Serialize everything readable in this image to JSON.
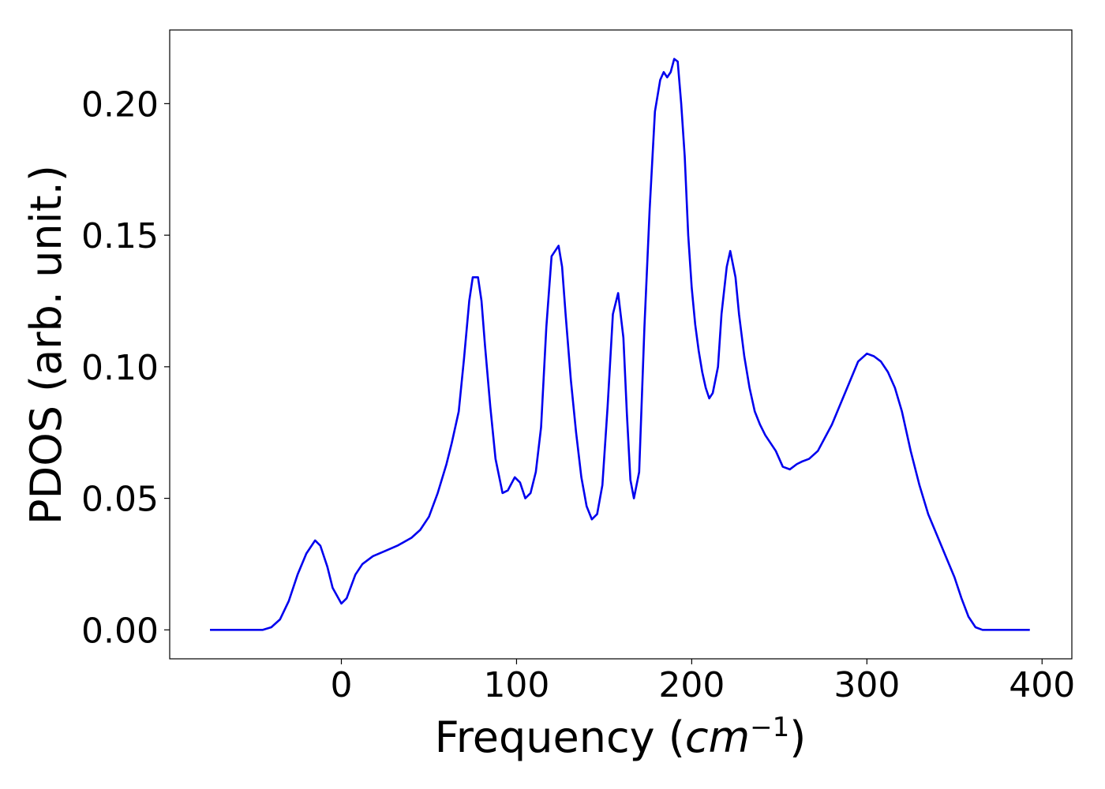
{
  "chart_data": {
    "type": "line",
    "title": "",
    "xlabel": "Frequency (cm^-1)",
    "xlabel_parts": {
      "prefix": "Frequency (",
      "unit": "cm",
      "exponent": "−1",
      "suffix": ")"
    },
    "ylabel": "PDOS (arb. unit.)",
    "xlim": [
      -98,
      417
    ],
    "ylim": [
      -0.011,
      0.228
    ],
    "xticks": [
      0,
      100,
      200,
      300,
      400
    ],
    "xtick_labels": [
      "0",
      "100",
      "200",
      "300",
      "400"
    ],
    "yticks": [
      0.0,
      0.05,
      0.1,
      0.15,
      0.2
    ],
    "ytick_labels": [
      "0.00",
      "0.05",
      "0.10",
      "0.15",
      "0.20"
    ],
    "grid": false,
    "legend": "none",
    "series": [
      {
        "color": "#0000ee",
        "x": [
          -75,
          -45,
          -40,
          -35,
          -30,
          -25,
          -20,
          -15,
          -12,
          -8,
          -5,
          0,
          3,
          8,
          12,
          18,
          25,
          32,
          40,
          45,
          50,
          55,
          60,
          63,
          67,
          70,
          73,
          75,
          78,
          80,
          82,
          85,
          88,
          92,
          95,
          99,
          102,
          105,
          108,
          111,
          114,
          117,
          120,
          124,
          126,
          128,
          131,
          134,
          137,
          140,
          143,
          146,
          149,
          152,
          155,
          158,
          161,
          163,
          165,
          167,
          170,
          173,
          176,
          179,
          182,
          184,
          186,
          188,
          190,
          192,
          194,
          196,
          198,
          200,
          202,
          204,
          206,
          208,
          210,
          212,
          215,
          217,
          220,
          222,
          225,
          227,
          230,
          233,
          236,
          239,
          242,
          245,
          248,
          252,
          256,
          260,
          263,
          267,
          272,
          276,
          280,
          285,
          290,
          295,
          300,
          304,
          308,
          312,
          316,
          320,
          325,
          330,
          335,
          340,
          345,
          350,
          354,
          358,
          362,
          366,
          370,
          393
        ],
        "y": [
          0.0,
          0.0,
          0.001,
          0.004,
          0.011,
          0.021,
          0.029,
          0.034,
          0.032,
          0.024,
          0.016,
          0.01,
          0.012,
          0.021,
          0.025,
          0.028,
          0.03,
          0.032,
          0.035,
          0.038,
          0.043,
          0.052,
          0.063,
          0.071,
          0.083,
          0.103,
          0.125,
          0.134,
          0.134,
          0.125,
          0.108,
          0.085,
          0.065,
          0.052,
          0.053,
          0.058,
          0.056,
          0.05,
          0.052,
          0.06,
          0.077,
          0.115,
          0.142,
          0.146,
          0.138,
          0.12,
          0.095,
          0.075,
          0.058,
          0.047,
          0.042,
          0.044,
          0.055,
          0.085,
          0.12,
          0.128,
          0.111,
          0.082,
          0.057,
          0.05,
          0.06,
          0.115,
          0.16,
          0.197,
          0.209,
          0.212,
          0.21,
          0.212,
          0.217,
          0.216,
          0.2,
          0.18,
          0.15,
          0.13,
          0.116,
          0.106,
          0.098,
          0.092,
          0.088,
          0.09,
          0.1,
          0.12,
          0.138,
          0.144,
          0.134,
          0.12,
          0.104,
          0.092,
          0.083,
          0.078,
          0.074,
          0.071,
          0.068,
          0.062,
          0.061,
          0.063,
          0.064,
          0.065,
          0.068,
          0.073,
          0.078,
          0.086,
          0.094,
          0.102,
          0.105,
          0.104,
          0.102,
          0.098,
          0.092,
          0.083,
          0.068,
          0.055,
          0.044,
          0.036,
          0.028,
          0.02,
          0.012,
          0.005,
          0.001,
          0.0,
          0.0,
          0.0
        ]
      }
    ]
  }
}
